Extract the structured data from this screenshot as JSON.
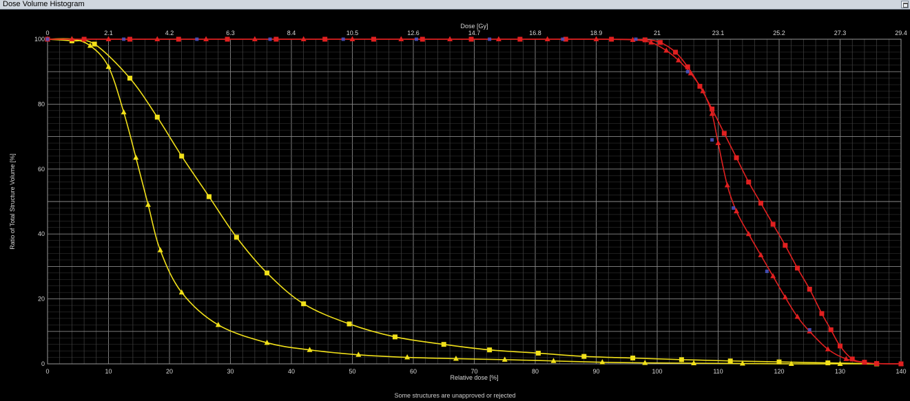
{
  "window": {
    "title": "Dose Volume Histogram"
  },
  "status_text": "Some structures are unapproved or rejected",
  "colors": {
    "background": "#000000",
    "grid": "#6a6a6a",
    "yellow": "#f2e11a",
    "red": "#e02020",
    "blue_marker": "#4a56c8"
  },
  "chart_data": {
    "type": "line",
    "xlabel": "Relative dose [%]",
    "ylabel": "Ratio of Total Structure Volume [%]",
    "x2label": "Dose [Gy]",
    "xlim": [
      0,
      140
    ],
    "ylim": [
      0,
      100
    ],
    "x_ticks": [
      "0",
      "10",
      "20",
      "30",
      "40",
      "50",
      "60",
      "70",
      "80",
      "90",
      "100",
      "110",
      "120",
      "130",
      "140"
    ],
    "x2_ticks": [
      "0",
      "2.1",
      "4.2",
      "6.3",
      "8.4",
      "10.5",
      "12.6",
      "14.7",
      "16.8",
      "18.9",
      "21",
      "23.1",
      "25.2",
      "27.3",
      "29.4"
    ],
    "y_ticks": [
      "0",
      "20",
      "40",
      "60",
      "80",
      "100"
    ],
    "grid": true,
    "series": [
      {
        "color": "#f2e11a",
        "marker": "square",
        "x": [
          0,
          4,
          7.7,
          13.5,
          18,
          22,
          26.5,
          31,
          36,
          42,
          49.5,
          57,
          65,
          72.5,
          80.5,
          88,
          96,
          104,
          112,
          120,
          128,
          136
        ],
        "y": [
          100,
          99.5,
          98.5,
          88,
          76,
          64,
          51.5,
          39,
          28,
          18.5,
          12.3,
          8.3,
          6,
          4.3,
          3.3,
          2.3,
          1.8,
          1.3,
          0.9,
          0.6,
          0.3,
          0
        ]
      },
      {
        "color": "#f2e11a",
        "marker": "triangle",
        "x": [
          0,
          4,
          7,
          10,
          12.5,
          14.5,
          16.5,
          18.5,
          22,
          28,
          36,
          43,
          51,
          59,
          67,
          75,
          83,
          91,
          98,
          106,
          114,
          122,
          130,
          136
        ],
        "y": [
          100,
          100,
          98,
          91.5,
          77.5,
          63.5,
          49,
          35,
          22,
          12,
          6.5,
          4.3,
          2.8,
          2,
          1.6,
          1.3,
          0.9,
          0.5,
          0.3,
          0.2,
          0.1,
          0,
          0,
          0
        ]
      },
      {
        "color": "#e02020",
        "marker": "square",
        "x": [
          0,
          6,
          13.5,
          21.5,
          29.5,
          37.5,
          45.5,
          53.5,
          61.5,
          69.5,
          77.5,
          85,
          92.5,
          98,
          100.5,
          103,
          105,
          107,
          109,
          111,
          113,
          115,
          117,
          119,
          121,
          123,
          125,
          127,
          128.5,
          130,
          132,
          134,
          136,
          140
        ],
        "y": [
          100,
          100,
          100,
          100,
          100,
          100,
          100,
          100,
          100,
          100,
          100,
          100,
          100,
          99.8,
          99,
          96,
          91.5,
          85.5,
          78.5,
          71,
          63.5,
          56,
          49.5,
          43,
          36.5,
          29.5,
          23,
          15.5,
          10.5,
          5.5,
          1.5,
          0.5,
          0.1,
          0
        ]
      },
      {
        "color": "#e02020",
        "marker": "triangle",
        "x": [
          0,
          4,
          10,
          18,
          26,
          34,
          42,
          50,
          58,
          66,
          74,
          82,
          90,
          96,
          99,
          101.5,
          103.5,
          105.5,
          107.5,
          109,
          110,
          111.5,
          113,
          115,
          117,
          119,
          121,
          123,
          125,
          128,
          131,
          134,
          136,
          140
        ],
        "y": [
          100,
          100,
          100,
          100,
          100,
          100,
          100,
          100,
          100,
          100,
          100,
          100,
          100,
          99.8,
          99,
          96.5,
          93.5,
          89.5,
          84,
          77,
          68,
          55,
          47,
          40,
          33.5,
          27,
          20.5,
          14.5,
          10,
          4.5,
          1.5,
          0.4,
          0.1,
          0
        ]
      }
    ]
  }
}
